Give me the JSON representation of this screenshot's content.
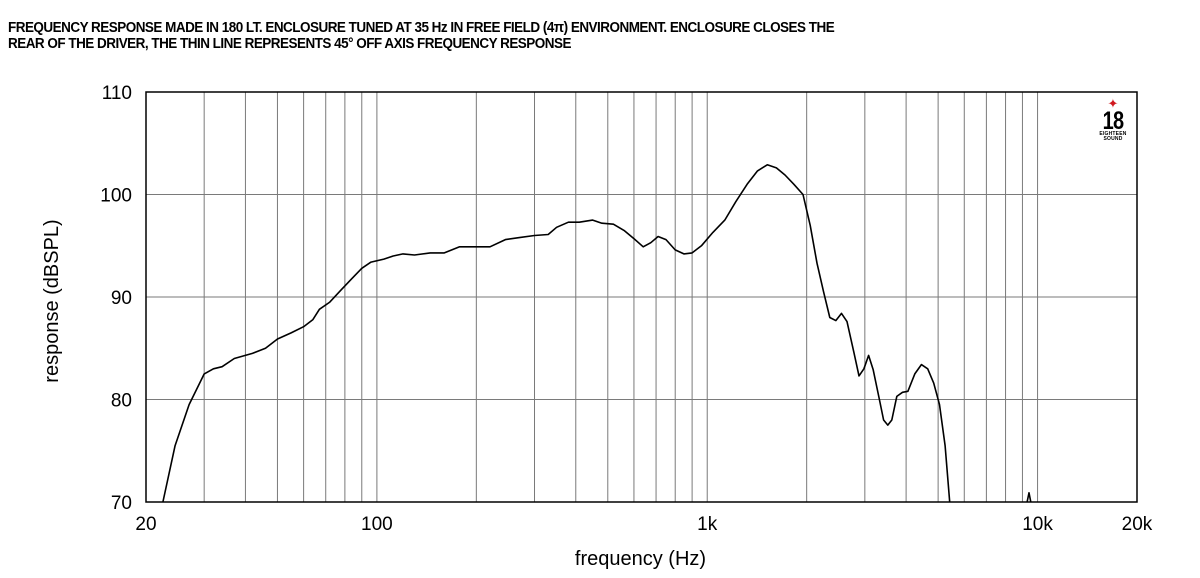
{
  "caption": {
    "line1": "FREQUENCY RESPONSE MADE IN 180 LT. ENCLOSURE TUNED AT 35 Hz IN FREE FIELD (4π) ENVIRONMENT. ENCLOSURE CLOSES THE",
    "line2": "REAR OF THE DRIVER, THE THIN LINE REPRESENTS 45° OFF AXIS FREQUENCY RESPONSE"
  },
  "logo": {
    "mark": "18",
    "sub1": "EIGHTEEN",
    "sub2": "SOUND",
    "accent": "#d0181f"
  },
  "chart_data": {
    "type": "line",
    "title": "",
    "xlabel": "frequency (Hz)",
    "ylabel": "response (dBSPL)",
    "xscale": "log",
    "xlim": [
      20,
      20000
    ],
    "ylim": [
      70,
      110
    ],
    "grid": true,
    "xticks": [
      {
        "value": 20,
        "label": "20"
      },
      {
        "value": 100,
        "label": "100"
      },
      {
        "value": 1000,
        "label": "1k"
      },
      {
        "value": 10000,
        "label": "10k"
      },
      {
        "value": 20000,
        "label": "20k"
      }
    ],
    "yticks": [
      {
        "value": 70,
        "label": "70"
      },
      {
        "value": 80,
        "label": "80"
      },
      {
        "value": 90,
        "label": "90"
      },
      {
        "value": 100,
        "label": "100"
      },
      {
        "value": 110,
        "label": "110"
      }
    ],
    "series": [
      {
        "stroke": "#000000",
        "points": [
          [
            22.5,
            70
          ],
          [
            24.5,
            75.5
          ],
          [
            27,
            79.5
          ],
          [
            30,
            82.5
          ],
          [
            32,
            83
          ],
          [
            34,
            83.2
          ],
          [
            37,
            84
          ],
          [
            42,
            84.5
          ],
          [
            46,
            85
          ],
          [
            50,
            85.9
          ],
          [
            55,
            86.5
          ],
          [
            60,
            87.1
          ],
          [
            64,
            87.8
          ],
          [
            67,
            88.8
          ],
          [
            72,
            89.5
          ],
          [
            78,
            90.7
          ],
          [
            84,
            91.8
          ],
          [
            90,
            92.8
          ],
          [
            96,
            93.4
          ],
          [
            105,
            93.7
          ],
          [
            112,
            94
          ],
          [
            120,
            94.2
          ],
          [
            130,
            94.1
          ],
          [
            145,
            94.3
          ],
          [
            160,
            94.3
          ],
          [
            178,
            94.9
          ],
          [
            200,
            94.9
          ],
          [
            220,
            94.9
          ],
          [
            245,
            95.6
          ],
          [
            270,
            95.8
          ],
          [
            300,
            96
          ],
          [
            330,
            96.1
          ],
          [
            350,
            96.8
          ],
          [
            380,
            97.3
          ],
          [
            410,
            97.3
          ],
          [
            450,
            97.5
          ],
          [
            480,
            97.2
          ],
          [
            520,
            97.1
          ],
          [
            560,
            96.5
          ],
          [
            600,
            95.7
          ],
          [
            640,
            94.9
          ],
          [
            675,
            95.3
          ],
          [
            710,
            95.9
          ],
          [
            750,
            95.6
          ],
          [
            800,
            94.6
          ],
          [
            850,
            94.2
          ],
          [
            900,
            94.3
          ],
          [
            960,
            95
          ],
          [
            1040,
            96.3
          ],
          [
            1130,
            97.5
          ],
          [
            1220,
            99.3
          ],
          [
            1320,
            101
          ],
          [
            1420,
            102.3
          ],
          [
            1520,
            102.9
          ],
          [
            1620,
            102.6
          ],
          [
            1720,
            101.9
          ],
          [
            1830,
            101
          ],
          [
            1950,
            100
          ],
          [
            2050,
            97
          ],
          [
            2150,
            93.3
          ],
          [
            2250,
            90.5
          ],
          [
            2350,
            88
          ],
          [
            2450,
            87.7
          ],
          [
            2550,
            88.4
          ],
          [
            2650,
            87.6
          ],
          [
            2780,
            84.6
          ],
          [
            2880,
            82.3
          ],
          [
            2980,
            83
          ],
          [
            3080,
            84.3
          ],
          [
            3180,
            82.9
          ],
          [
            3320,
            80
          ],
          [
            3420,
            78
          ],
          [
            3520,
            77.5
          ],
          [
            3620,
            78
          ],
          [
            3750,
            80.3
          ],
          [
            3900,
            80.7
          ],
          [
            4050,
            80.8
          ],
          [
            4250,
            82.5
          ],
          [
            4450,
            83.4
          ],
          [
            4650,
            83
          ],
          [
            4850,
            81.6
          ],
          [
            5050,
            79.5
          ],
          [
            5250,
            75.5
          ],
          [
            5420,
            70
          ]
        ]
      },
      {
        "stroke": "#000000",
        "points": [
          [
            9300,
            70
          ],
          [
            9420,
            70.9
          ],
          [
            9540,
            70
          ]
        ]
      }
    ]
  }
}
